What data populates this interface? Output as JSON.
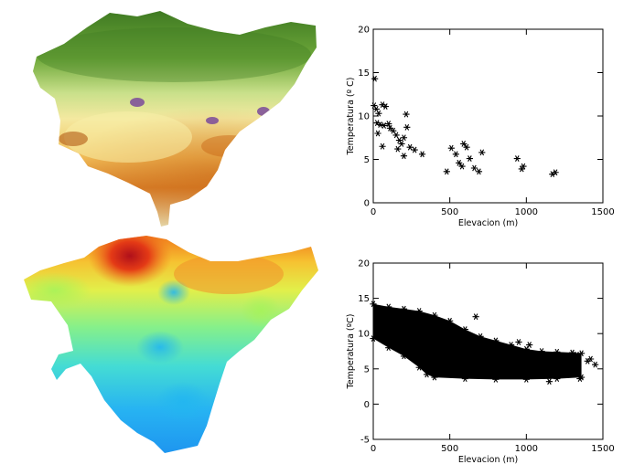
{
  "maps": {
    "top": {
      "kind": "elevation-relief",
      "colors": [
        "#4f8a2a",
        "#a8cf6a",
        "#f1e79a",
        "#f0b24a",
        "#c86414",
        "#7a4a9a"
      ]
    },
    "bottom": {
      "kind": "interpolated-temperature",
      "colors": [
        "#c0181a",
        "#f08a1a",
        "#e8e040",
        "#9ef06a",
        "#3ad6d0",
        "#22a8f0"
      ]
    }
  },
  "chart_data": [
    {
      "type": "scatter",
      "marker": "asterisk",
      "title": "",
      "xlabel": "Elevacion (m)",
      "ylabel": "Temperatura (º C)",
      "xlim": [
        0,
        1500
      ],
      "ylim": [
        0,
        20
      ],
      "xticks": [
        0,
        500,
        1000,
        1500
      ],
      "yticks": [
        0,
        5,
        10,
        15,
        20
      ],
      "grid": false,
      "points": [
        [
          10,
          14.3
        ],
        [
          5,
          11.2
        ],
        [
          20,
          10.8
        ],
        [
          35,
          10.3
        ],
        [
          60,
          11.3
        ],
        [
          80,
          11.1
        ],
        [
          25,
          9.2
        ],
        [
          45,
          9.0
        ],
        [
          70,
          8.9
        ],
        [
          100,
          9.1
        ],
        [
          110,
          8.6
        ],
        [
          130,
          8.3
        ],
        [
          30,
          8.0
        ],
        [
          60,
          6.5
        ],
        [
          150,
          7.8
        ],
        [
          170,
          7.2
        ],
        [
          185,
          6.8
        ],
        [
          200,
          7.5
        ],
        [
          220,
          8.7
        ],
        [
          215,
          10.2
        ],
        [
          240,
          6.4
        ],
        [
          270,
          6.1
        ],
        [
          320,
          5.6
        ],
        [
          160,
          6.2
        ],
        [
          200,
          5.4
        ],
        [
          480,
          3.6
        ],
        [
          510,
          6.3
        ],
        [
          540,
          5.6
        ],
        [
          560,
          4.6
        ],
        [
          590,
          6.8
        ],
        [
          610,
          6.4
        ],
        [
          630,
          5.1
        ],
        [
          660,
          4.0
        ],
        [
          690,
          3.6
        ],
        [
          710,
          5.8
        ],
        [
          580,
          4.2
        ],
        [
          940,
          5.1
        ],
        [
          970,
          3.9
        ],
        [
          980,
          4.2
        ],
        [
          1170,
          3.3
        ],
        [
          1190,
          3.5
        ]
      ]
    },
    {
      "type": "scatter",
      "marker": "asterisk",
      "dense": true,
      "title": "",
      "xlabel": "Elevacion (m)",
      "ylabel": "Temperatura (ºC)",
      "xlim": [
        0,
        1500
      ],
      "ylim": [
        -5,
        20
      ],
      "xticks": [
        0,
        500,
        1000,
        1500
      ],
      "yticks": [
        -5,
        0,
        5,
        10,
        15,
        20
      ],
      "grid": false,
      "envelope": {
        "upper": [
          [
            0,
            14.2
          ],
          [
            100,
            13.8
          ],
          [
            200,
            13.5
          ],
          [
            300,
            13.2
          ],
          [
            400,
            12.6
          ],
          [
            500,
            11.8
          ],
          [
            600,
            10.6
          ],
          [
            700,
            9.6
          ],
          [
            800,
            9.0
          ],
          [
            900,
            8.4
          ],
          [
            1000,
            7.8
          ],
          [
            1100,
            7.5
          ],
          [
            1200,
            7.4
          ],
          [
            1300,
            7.3
          ],
          [
            1360,
            7.2
          ]
        ],
        "lower": [
          [
            0,
            9.3
          ],
          [
            100,
            8.0
          ],
          [
            200,
            6.8
          ],
          [
            300,
            5.2
          ],
          [
            350,
            4.2
          ],
          [
            400,
            3.8
          ],
          [
            600,
            3.6
          ],
          [
            800,
            3.5
          ],
          [
            1000,
            3.5
          ],
          [
            1200,
            3.6
          ],
          [
            1360,
            3.8
          ]
        ]
      },
      "outliers": [
        [
          670,
          12.4
        ],
        [
          1400,
          6.1
        ],
        [
          1450,
          5.6
        ],
        [
          1420,
          6.4
        ],
        [
          1330,
          7.0
        ],
        [
          1350,
          3.6
        ],
        [
          1150,
          3.2
        ],
        [
          1020,
          8.4
        ],
        [
          950,
          8.8
        ]
      ]
    }
  ]
}
